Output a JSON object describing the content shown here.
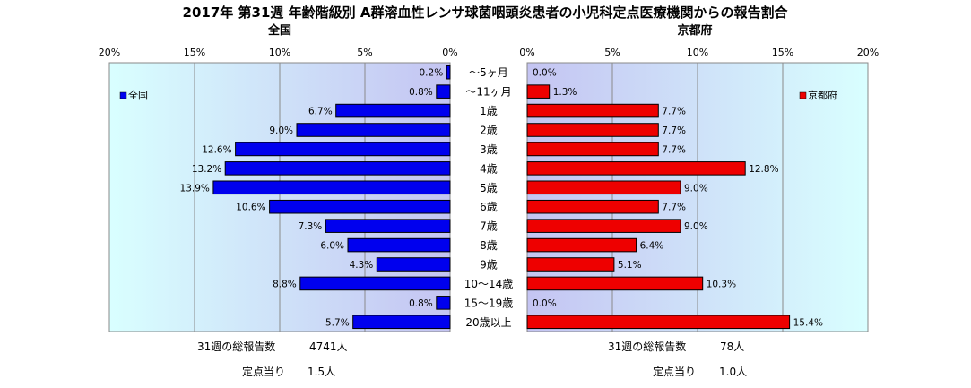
{
  "title": "2017年 第31週 年齢階級別 A群溶血性レンサ球菌咽頭炎患者の小児科定点医療機関からの報告割合",
  "categories": [
    "～5ヶ月",
    "～11ヶ月",
    "1歳",
    "2歳",
    "3歳",
    "4歳",
    "5歳",
    "6歳",
    "7歳",
    "8歳",
    "9歳",
    "10～14歳",
    "15～19歳",
    "20歳以上"
  ],
  "colors": {
    "national": "#0000ee",
    "kyoto": "#ee0000"
  },
  "chart_data": [
    {
      "type": "bar",
      "orientation": "horizontal",
      "direction": "right-to-left",
      "title": "全国",
      "xlim": [
        0,
        20
      ],
      "ticks": [
        "20%",
        "15%",
        "10%",
        "5%",
        "0%"
      ],
      "tick_values": [
        20,
        15,
        10,
        5,
        0
      ],
      "legend": {
        "label": "全国",
        "placement": "top-left"
      },
      "series": [
        {
          "name": "全国",
          "values": [
            0.2,
            0.8,
            6.7,
            9.0,
            12.6,
            13.2,
            13.9,
            10.6,
            7.3,
            6.0,
            4.3,
            8.8,
            0.8,
            5.7
          ]
        }
      ],
      "value_labels": [
        "0.2%",
        "0.8%",
        "6.7%",
        "9.0%",
        "12.6%",
        "13.2%",
        "13.9%",
        "10.6%",
        "7.3%",
        "6.0%",
        "4.3%",
        "8.8%",
        "0.8%",
        "5.7%"
      ],
      "grid": true
    },
    {
      "type": "bar",
      "orientation": "horizontal",
      "direction": "left-to-right",
      "title": "京都府",
      "xlim": [
        0,
        20
      ],
      "ticks": [
        "0%",
        "5%",
        "10%",
        "15%",
        "20%"
      ],
      "tick_values": [
        0,
        5,
        10,
        15,
        20
      ],
      "legend": {
        "label": "京都府",
        "placement": "top-right"
      },
      "series": [
        {
          "name": "京都府",
          "values": [
            0.0,
            1.3,
            7.7,
            7.7,
            7.7,
            12.8,
            9.0,
            7.7,
            9.0,
            6.4,
            5.1,
            10.3,
            0.0,
            15.4
          ]
        }
      ],
      "value_labels": [
        "0.0%",
        "1.3%",
        "7.7%",
        "7.7%",
        "7.7%",
        "12.8%",
        "9.0%",
        "7.7%",
        "9.0%",
        "6.4%",
        "5.1%",
        "10.3%",
        "0.0%",
        "15.4%"
      ],
      "grid": true
    }
  ],
  "footer": {
    "national": {
      "total_label": "31週の総報告数",
      "total_value": "4741人",
      "per_label": "定点当り",
      "per_value": "1.5人"
    },
    "kyoto": {
      "total_label": "31週の総報告数",
      "total_value": "78人",
      "per_label": "定点当り",
      "per_value": "1.0人"
    }
  }
}
